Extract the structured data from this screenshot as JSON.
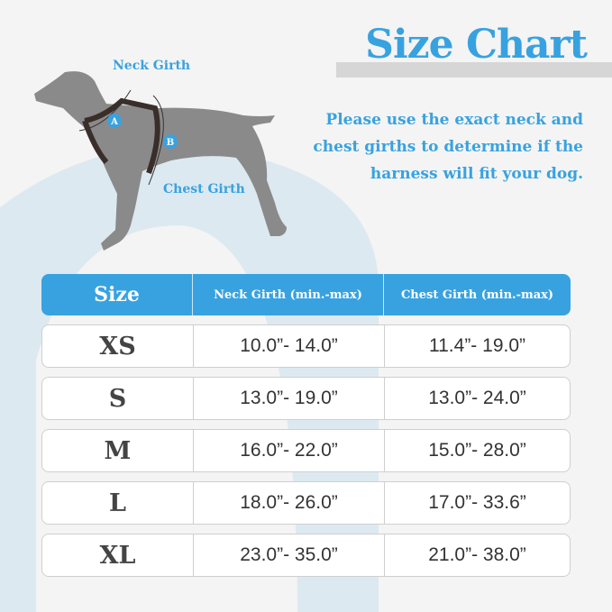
{
  "title": "Size Chart",
  "intro": "Please use the exact neck and chest girths to determine if the harness will fit your dog.",
  "diagram": {
    "neck_label": "Neck Girth",
    "chest_label": "Chest Girth",
    "marker_a": "A",
    "marker_b": "B"
  },
  "colors": {
    "accent": "#38a2e0",
    "dog": "#8a8a8a",
    "harness": "#3a2e2a",
    "background_shape": "#dce9f0"
  },
  "table": {
    "headers": [
      "Size",
      "Neck Girth (min.-max)",
      "Chest Girth (min.-max)"
    ],
    "rows": [
      [
        "XS",
        "10.0”- 14.0”",
        "11.4”- 19.0”"
      ],
      [
        "S",
        "13.0”- 19.0”",
        "13.0”- 24.0”"
      ],
      [
        "M",
        "16.0”- 22.0”",
        "15.0”- 28.0”"
      ],
      [
        "L",
        "18.0”- 26.0”",
        "17.0”- 33.6”"
      ],
      [
        "XL",
        "23.0”- 35.0”",
        "21.0”- 38.0”"
      ]
    ]
  }
}
